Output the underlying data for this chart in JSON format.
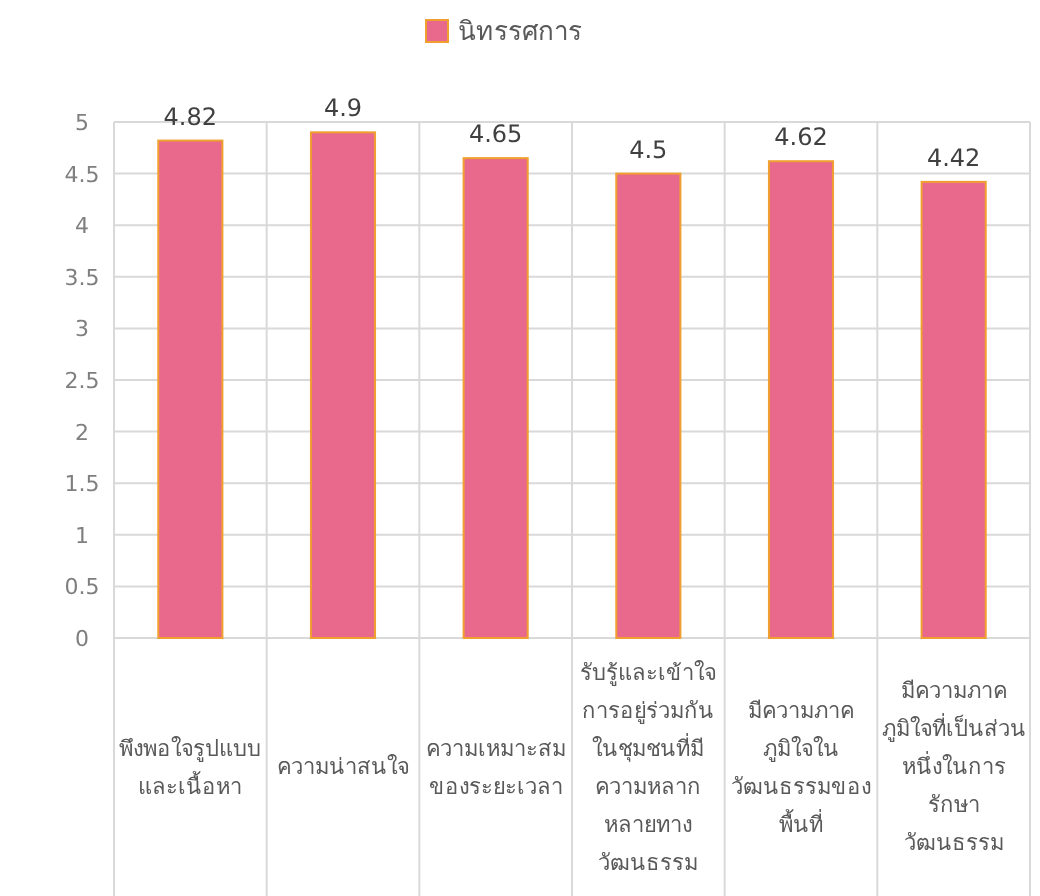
{
  "chart_data": {
    "type": "bar",
    "categories": [
      "พึงพอใจรูปแบบและเนื้อหา",
      "ความน่าสนใจ",
      "ความเหมาะสมของระยะเวลา",
      "รับรู้และเข้าใจการอยู่ร่วมกันในชุมชนที่มีความหลากหลายทางวัฒนธรรม",
      "มีความภาคภูมิใจในวัฒนธรรมของพื้นที่",
      "มีความภาคภูมิใจที่เป็นส่วนหนึ่งในการรักษาวัฒนธรรม"
    ],
    "series": [
      {
        "name": "นิทรรศการ",
        "color": "#e8698b",
        "values": [
          4.82,
          4.9,
          4.65,
          4.5,
          4.62,
          4.42
        ]
      }
    ],
    "ylim": [
      0,
      5
    ],
    "yticks": [
      0,
      0.5,
      1,
      1.5,
      2,
      2.5,
      3,
      3.5,
      4,
      4.5,
      5
    ],
    "grid": true,
    "legend": "top",
    "data_labels": true
  }
}
